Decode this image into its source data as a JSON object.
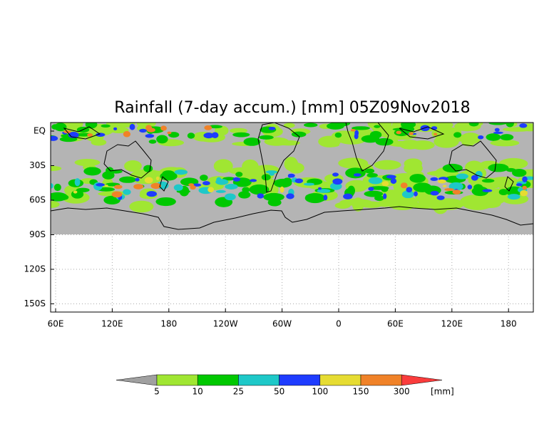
{
  "title": "Rainfall (7-day accum.) [mm] 05Z09Nov2018",
  "map": {
    "y_labels": [
      "EQ",
      "30S",
      "60S",
      "90S",
      "120S",
      "150S"
    ],
    "x_labels": [
      "60E",
      "120E",
      "180",
      "120W",
      "60W",
      "0",
      "60E",
      "120E",
      "180"
    ]
  },
  "legend": {
    "labels": [
      "5",
      "10",
      "25",
      "50",
      "100",
      "150",
      "300"
    ],
    "unit": "[mm]"
  }
}
